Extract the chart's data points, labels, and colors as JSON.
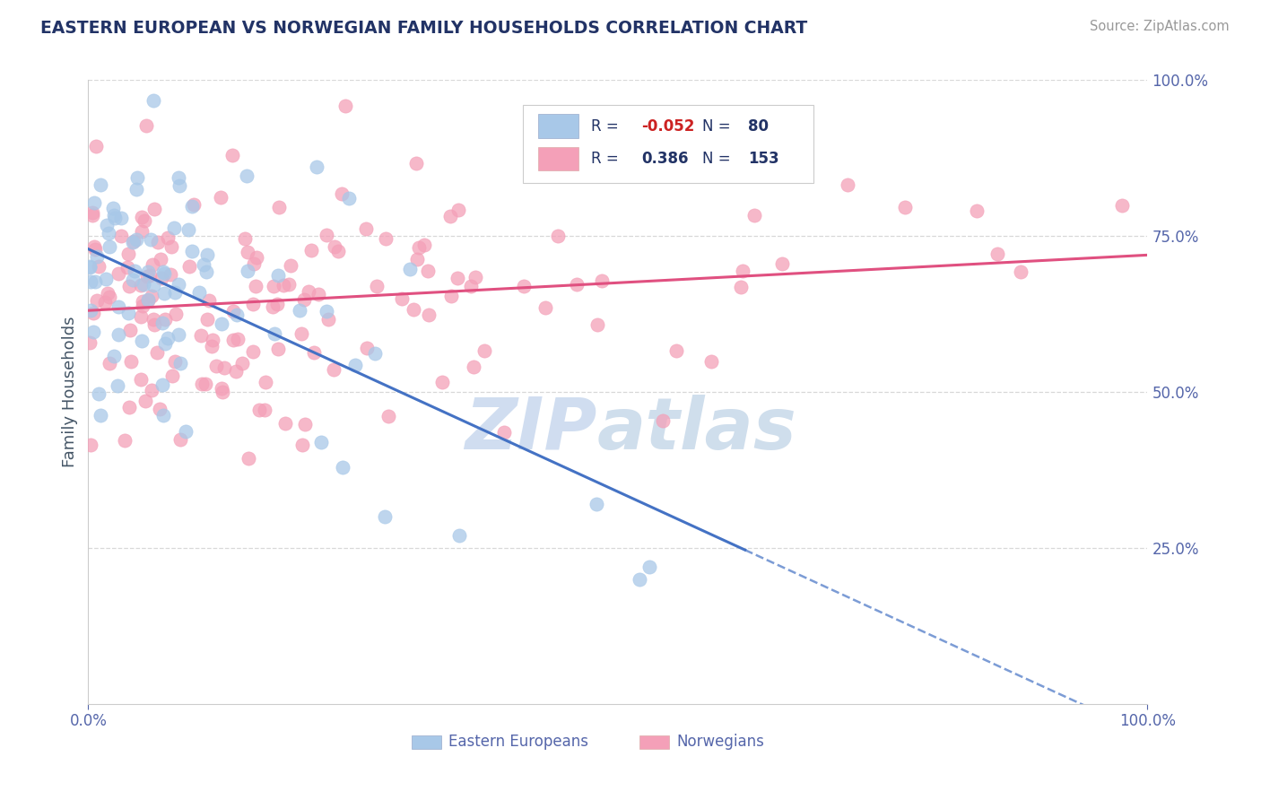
{
  "title": "EASTERN EUROPEAN VS NORWEGIAN FAMILY HOUSEHOLDS CORRELATION CHART",
  "source_text": "Source: ZipAtlas.com",
  "ylabel": "Family Households",
  "blue_color": "#a8c8e8",
  "pink_color": "#f4a0b8",
  "blue_line_color": "#4472c4",
  "pink_line_color": "#e05080",
  "watermark_color": "#d0dff0",
  "background_color": "#ffffff",
  "grid_color": "#d8d8d8",
  "tick_color": "#5566aa",
  "ytick_labels": [
    "25.0%",
    "50.0%",
    "75.0%",
    "100.0%"
  ],
  "ytick_vals": [
    0.25,
    0.5,
    0.75,
    1.0
  ],
  "legend_R_blue": "-0.052",
  "legend_N_blue": "80",
  "legend_R_pink": "0.386",
  "legend_N_pink": "153"
}
